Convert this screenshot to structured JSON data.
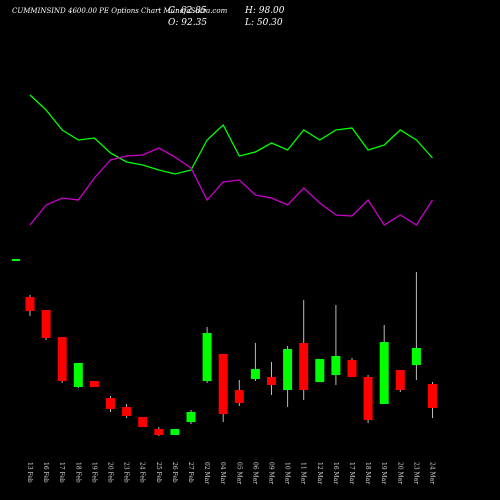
{
  "chart_data": {
    "type": "candlestick",
    "title": "CUMMINSIND 4600.00 PE Options  Chart MunafaSutra.com",
    "info": {
      "close": "C: 62.85",
      "high": "H: 98.00",
      "open": "O: 92.35",
      "low": "L: 50.30"
    },
    "categories": [
      "13 Feb",
      "16 Feb",
      "17 Feb",
      "18 Feb",
      "19 Feb",
      "20 Feb",
      "23 Feb",
      "24 Feb",
      "25 Feb",
      "26 Feb",
      "27 Feb",
      "02 Mar",
      "04 Mar",
      "05 Mar",
      "06 Mar",
      "09 Mar",
      "10 Mar",
      "11 Mar",
      "12 Mar",
      "16 Mar",
      "17 Mar",
      "18 Mar",
      "19 Mar",
      "20 Mar",
      "23 Mar",
      "24 Mar"
    ],
    "open": [
      126.4,
      116,
      94.4,
      54.4,
      59.2,
      45.6,
      38.4,
      30.4,
      20.8,
      16,
      26.4,
      59.2,
      80.8,
      52,
      60.8,
      62.4,
      52,
      89.6,
      58.4,
      64,
      76,
      62.4,
      40.8,
      68,
      72,
      56.8
    ],
    "high": [
      128,
      116,
      94.4,
      73.6,
      59.2,
      47.2,
      40.8,
      30.4,
      22.4,
      20.8,
      36,
      102.4,
      80.8,
      60,
      89.6,
      74.4,
      87.2,
      124,
      76.8,
      120,
      77.6,
      64,
      104,
      68,
      146.4,
      58.4
    ],
    "low": [
      111.2,
      92,
      57.6,
      53.6,
      54.4,
      34.4,
      29.6,
      22.4,
      15.2,
      16,
      24.8,
      57.6,
      26.4,
      39.2,
      59.2,
      48,
      38.4,
      44,
      58.4,
      56,
      62.4,
      25.6,
      40.8,
      50.4,
      60,
      29.6
    ],
    "close": [
      115.2,
      93.6,
      59.2,
      73.6,
      54.4,
      36.8,
      31.2,
      22.4,
      16,
      20.8,
      34.4,
      97.6,
      32.8,
      41.6,
      68.8,
      56,
      84.8,
      52,
      76.8,
      79.2,
      62.4,
      28,
      90.4,
      52,
      85.6,
      37.6
    ],
    "up_color": "#00ff00",
    "down_color": "#ff0000",
    "ylim": [
      0,
      160
    ],
    "series": [
      {
        "color": "#00ff00",
        "axis": "y2",
        "values": [
          77.5,
          70,
          60,
          55,
          56,
          48.5,
          44,
          42.5,
          40,
          38,
          40,
          55,
          62.5,
          47,
          49,
          53.5,
          50,
          60,
          55,
          60,
          61,
          50,
          52.5,
          60,
          55,
          46
        ]
      },
      {
        "color": "#cc00cc",
        "axis": "y2",
        "values": [
          12.5,
          22.5,
          26,
          25,
          36,
          45,
          47,
          47.5,
          51,
          46.5,
          41,
          25,
          34,
          35,
          27.5,
          26,
          22.5,
          31,
          23.5,
          17.5,
          17,
          25,
          12.5,
          17.5,
          12.5,
          25
        ]
      }
    ],
    "y2lim": [
      0,
      100
    ]
  }
}
